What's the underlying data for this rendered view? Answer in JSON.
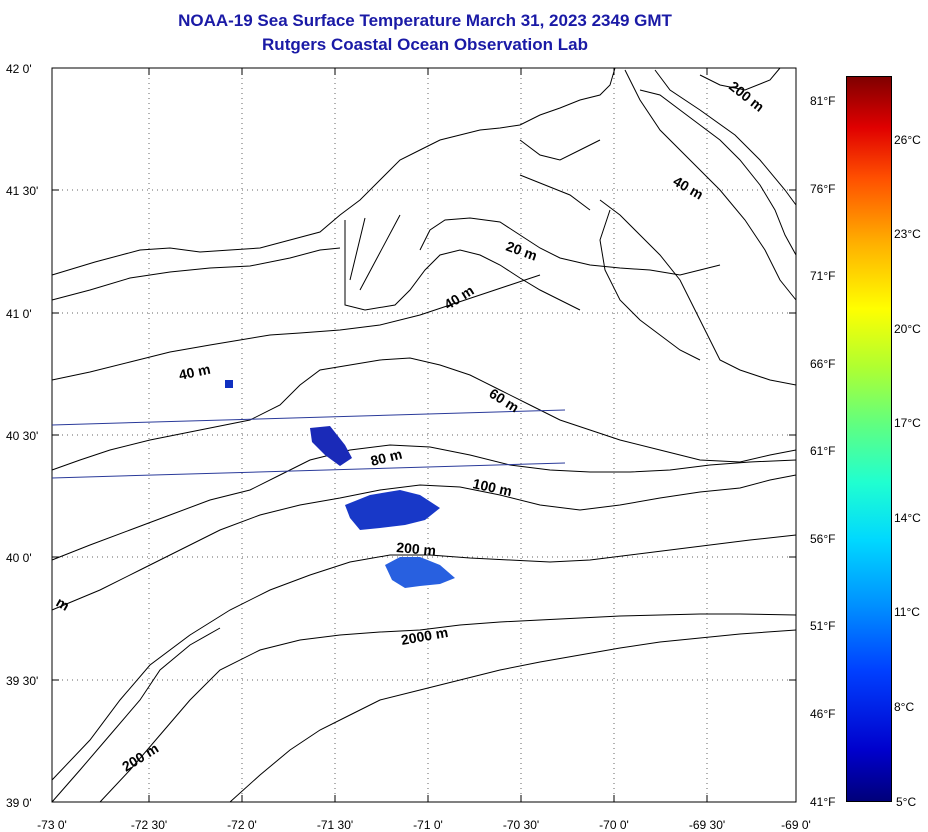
{
  "title": {
    "line1": "NOAA-19 Sea Surface Temperature March 31, 2023 2349 GMT",
    "line2": "Rutgers Coastal Ocean Observation Lab"
  },
  "map": {
    "extent": {
      "lon_min": -73.0,
      "lon_max": -69.0,
      "lat_min": 39.0,
      "lat_max": 42.0
    },
    "lat_labels": [
      "42 0'",
      "41 30'",
      "41 0'",
      "40 30'",
      "40 0'",
      "39 30'",
      "39 0'"
    ],
    "lon_labels": [
      "-73 0'",
      "-72 30'",
      "-72 0'",
      "-71 30'",
      "-71 0'",
      "-70 30'",
      "-70 0'",
      "-69 30'",
      "-69 0'"
    ],
    "contour_labels": [
      "200 m",
      "40 m",
      "20 m",
      "40 m",
      "40 m",
      "60 m",
      "80 m",
      "100 m",
      "200 m",
      "2000 m",
      "200 m",
      "m"
    ],
    "colors": {
      "title": "#1a1aa6",
      "land_line": "#000000",
      "cloud_blue": "#1030c0",
      "track_line": "#2a3a9a"
    }
  },
  "colorbar": {
    "fahrenheit": [
      "81°F",
      "76°F",
      "71°F",
      "66°F",
      "61°F",
      "56°F",
      "51°F",
      "46°F",
      "41°F"
    ],
    "celsius": [
      "26°C",
      "23°C",
      "20°C",
      "17°C",
      "14°C",
      "11°C",
      "8°C",
      "5°C"
    ],
    "range_c": [
      5,
      28
    ]
  }
}
